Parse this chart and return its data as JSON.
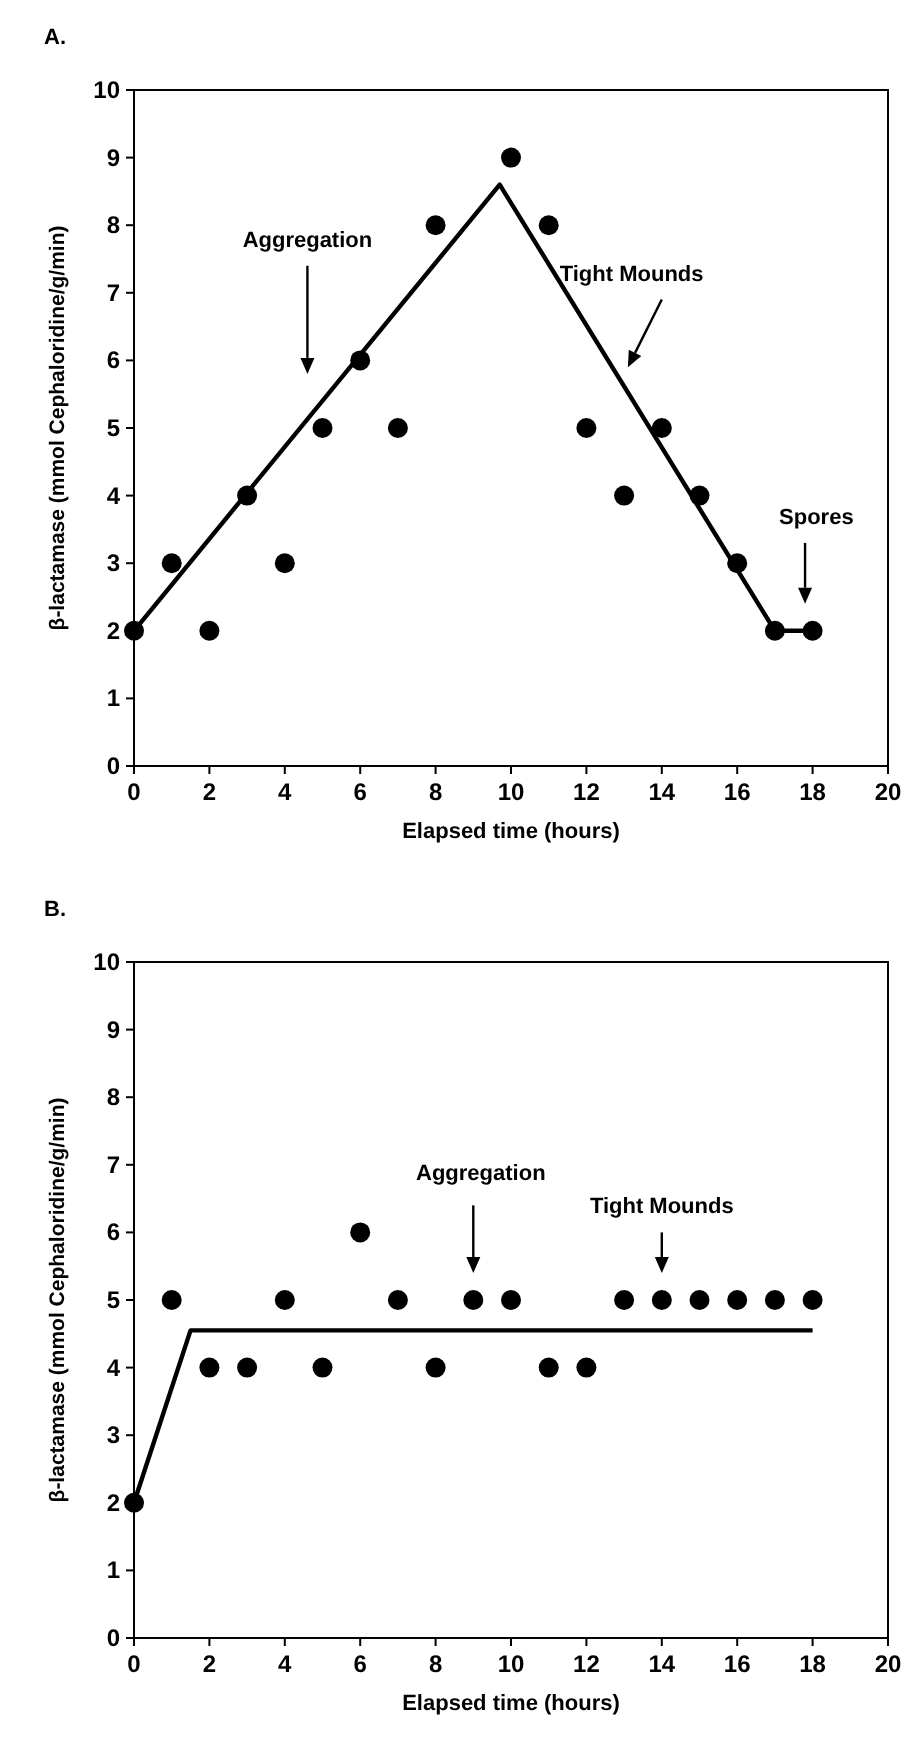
{
  "chart_data": [
    {
      "type": "scatter",
      "title": "A.",
      "xlabel": "Elapsed time (hours)",
      "ylabel": "β-lactamase (mmol Cephaloridine/g/min)",
      "xlim": [
        0,
        20
      ],
      "ylim": [
        0,
        10
      ],
      "xticks": [
        0,
        2,
        4,
        6,
        8,
        10,
        12,
        14,
        16,
        18,
        20
      ],
      "yticks": [
        0,
        1,
        2,
        3,
        4,
        5,
        6,
        7,
        8,
        9,
        10
      ],
      "series": [
        {
          "type": "scatter",
          "color": "#000000",
          "marker": "circle",
          "x": [
            0,
            1,
            2,
            3,
            4,
            5,
            6,
            7,
            8,
            10,
            11,
            12,
            13,
            14,
            15,
            16,
            17,
            18
          ],
          "values": [
            2,
            3,
            2,
            4,
            3,
            5,
            6,
            5,
            8,
            9,
            8,
            5,
            4,
            5,
            4,
            3,
            2,
            2
          ]
        },
        {
          "type": "line",
          "color": "#000000",
          "marker": "none",
          "line_style": "solid",
          "x": [
            0,
            9.7,
            17,
            18
          ],
          "values": [
            2,
            8.6,
            2,
            2
          ]
        }
      ],
      "annotations": [
        "Aggregation",
        "Tight Mounds",
        "Spores"
      ]
    },
    {
      "type": "scatter",
      "title": "B.",
      "xlabel": "Elapsed time (hours)",
      "ylabel": "β-lactamase (mmol Cephaloridine/g/min)",
      "xlim": [
        0,
        20
      ],
      "ylim": [
        0,
        10
      ],
      "xticks": [
        0,
        2,
        4,
        6,
        8,
        10,
        12,
        14,
        16,
        18,
        20
      ],
      "yticks": [
        0,
        1,
        2,
        3,
        4,
        5,
        6,
        7,
        8,
        9,
        10
      ],
      "series": [
        {
          "type": "scatter",
          "color": "#000000",
          "marker": "circle",
          "x": [
            0,
            1,
            2,
            3,
            4,
            5,
            6,
            7,
            8,
            9,
            10,
            11,
            12,
            13,
            14,
            15,
            16,
            17,
            18
          ],
          "values": [
            2,
            5,
            4,
            4,
            5,
            4,
            6,
            5,
            4,
            5,
            5,
            4,
            4,
            5,
            5,
            5,
            5,
            5,
            5
          ]
        },
        {
          "type": "line",
          "color": "#000000",
          "marker": "none",
          "line_style": "solid",
          "x": [
            0,
            1.5,
            18
          ],
          "values": [
            2,
            4.55,
            4.55
          ]
        }
      ],
      "annotations": [
        "Aggregation",
        "Tight Mounds"
      ]
    }
  ]
}
